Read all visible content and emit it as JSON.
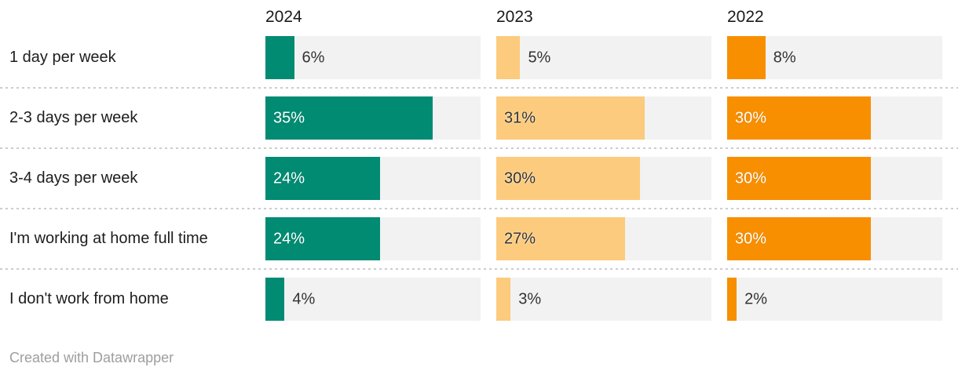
{
  "colors": {
    "green": "#028B73",
    "light_orange": "#FCCB7D",
    "orange": "#F88F00",
    "bar_track": "#F2F2F2",
    "category_label": "#1D1D1D",
    "value_dark": "#333333",
    "value_light": "#FFFFFF",
    "separator": "#CCCCCC",
    "credit_text": "#9E9E9E"
  },
  "footer": {
    "credit": "Created with Datawrapper"
  },
  "chart_data": {
    "type": "bar",
    "orientation": "horizontal",
    "categories": [
      "1 day per week",
      "2-3 days per week",
      "3-4 days per week",
      "I'm working at home full time",
      "I don't work from home"
    ],
    "series": [
      {
        "name": "2024",
        "color": "#028B73",
        "inside_label_color": "#FFFFFF",
        "values": [
          6,
          35,
          24,
          24,
          4
        ]
      },
      {
        "name": "2023",
        "color": "#FCCB7D",
        "inside_label_color": "#333333",
        "values": [
          5,
          31,
          30,
          27,
          3
        ]
      },
      {
        "name": "2022",
        "color": "#F88F00",
        "inside_label_color": "#FFFFFF",
        "values": [
          8,
          30,
          30,
          30,
          2
        ]
      }
    ],
    "value_suffix": "%",
    "xlim": [
      0,
      45
    ],
    "inside_label_threshold": 20,
    "grid": false,
    "legend_position": "column-headers",
    "title": "",
    "xlabel": "",
    "ylabel": ""
  }
}
